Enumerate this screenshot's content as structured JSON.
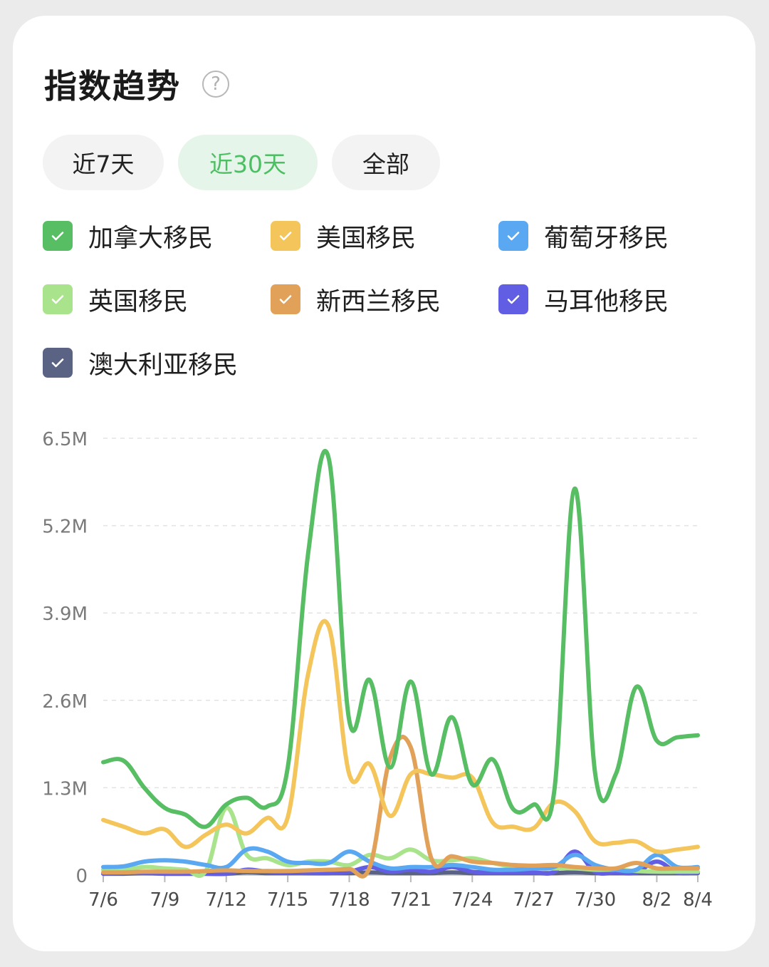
{
  "header": {
    "title": "指数趋势",
    "help_icon": "?"
  },
  "tabs": [
    {
      "label": "近7天",
      "active": false
    },
    {
      "label": "近30天",
      "active": true
    },
    {
      "label": "全部",
      "active": false
    }
  ],
  "legend": [
    {
      "label": "加拿大移民",
      "color": "#57be64"
    },
    {
      "label": "美国移民",
      "color": "#f4c55a"
    },
    {
      "label": "葡萄牙移民",
      "color": "#5aa8f2"
    },
    {
      "label": "英国移民",
      "color": "#a9e38b"
    },
    {
      "label": "新西兰移民",
      "color": "#e2a159"
    },
    {
      "label": "马耳他移民",
      "color": "#625ee4"
    },
    {
      "label": "澳大利亚移民",
      "color": "#5b6384"
    }
  ],
  "chart_data": {
    "type": "line",
    "x_ticks": [
      "7/6",
      "7/9",
      "7/12",
      "7/15",
      "7/18",
      "7/21",
      "7/24",
      "7/27",
      "7/30",
      "8/2",
      "8/4"
    ],
    "y_ticks": [
      "0",
      "1.3M",
      "2.6M",
      "3.9M",
      "5.2M",
      "6.5M"
    ],
    "ylim": [
      0,
      6.5
    ],
    "y_unit": "M",
    "grid": "horizontal-dashed",
    "series": [
      {
        "name": "加拿大移民",
        "color": "#57be64",
        "points": [
          [
            0,
            1.68
          ],
          [
            1,
            1.7
          ],
          [
            2,
            1.3
          ],
          [
            3,
            1.0
          ],
          [
            4,
            0.9
          ],
          [
            5,
            0.72
          ],
          [
            6,
            1.05
          ],
          [
            7,
            1.15
          ],
          [
            8,
            1.02
          ],
          [
            9,
            1.6
          ],
          [
            10,
            4.8
          ],
          [
            11,
            6.2
          ],
          [
            12,
            2.3
          ],
          [
            13,
            2.9
          ],
          [
            14,
            1.6
          ],
          [
            15,
            2.88
          ],
          [
            16,
            1.5
          ],
          [
            17,
            2.35
          ],
          [
            18,
            1.35
          ],
          [
            19,
            1.72
          ],
          [
            20,
            0.98
          ],
          [
            21,
            1.05
          ],
          [
            22,
            1.25
          ],
          [
            23,
            5.75
          ],
          [
            24,
            1.5
          ],
          [
            25,
            1.5
          ],
          [
            26,
            2.8
          ],
          [
            27,
            2.0
          ],
          [
            28,
            2.05
          ],
          [
            29,
            2.08
          ]
        ]
      },
      {
        "name": "美国移民",
        "color": "#f4c55a",
        "points": [
          [
            0,
            0.82
          ],
          [
            1,
            0.72
          ],
          [
            2,
            0.62
          ],
          [
            3,
            0.68
          ],
          [
            4,
            0.42
          ],
          [
            5,
            0.6
          ],
          [
            6,
            0.75
          ],
          [
            7,
            0.62
          ],
          [
            8,
            0.85
          ],
          [
            9,
            0.86
          ],
          [
            10,
            3.0
          ],
          [
            11,
            3.7
          ],
          [
            12,
            1.5
          ],
          [
            13,
            1.65
          ],
          [
            14,
            0.88
          ],
          [
            15,
            1.5
          ],
          [
            16,
            1.5
          ],
          [
            17,
            1.45
          ],
          [
            18,
            1.45
          ],
          [
            19,
            0.78
          ],
          [
            20,
            0.72
          ],
          [
            21,
            0.7
          ],
          [
            22,
            1.08
          ],
          [
            23,
            0.95
          ],
          [
            24,
            0.5
          ],
          [
            25,
            0.48
          ],
          [
            26,
            0.5
          ],
          [
            27,
            0.35
          ],
          [
            28,
            0.38
          ],
          [
            29,
            0.42
          ]
        ]
      },
      {
        "name": "新西兰移民",
        "color": "#e2a159",
        "points": [
          [
            0,
            0.04
          ],
          [
            1,
            0.04
          ],
          [
            2,
            0.05
          ],
          [
            3,
            0.05
          ],
          [
            4,
            0.05
          ],
          [
            5,
            0.06
          ],
          [
            6,
            0.07
          ],
          [
            7,
            0.06
          ],
          [
            8,
            0.06
          ],
          [
            9,
            0.06
          ],
          [
            10,
            0.07
          ],
          [
            11,
            0.08
          ],
          [
            12,
            0.09
          ],
          [
            13,
            0.12
          ],
          [
            14,
            1.75
          ],
          [
            15,
            1.9
          ],
          [
            16,
            0.25
          ],
          [
            17,
            0.28
          ],
          [
            18,
            0.2
          ],
          [
            19,
            0.18
          ],
          [
            20,
            0.15
          ],
          [
            21,
            0.14
          ],
          [
            22,
            0.15
          ],
          [
            23,
            0.12
          ],
          [
            24,
            0.1
          ],
          [
            25,
            0.1
          ],
          [
            26,
            0.18
          ],
          [
            27,
            0.1
          ],
          [
            28,
            0.1
          ],
          [
            29,
            0.1
          ]
        ]
      },
      {
        "name": "英国移民",
        "color": "#a9e38b",
        "points": [
          [
            0,
            0.08
          ],
          [
            1,
            0.08
          ],
          [
            2,
            0.12
          ],
          [
            3,
            0.1
          ],
          [
            4,
            0.08
          ],
          [
            5,
            0.06
          ],
          [
            6,
            1.0
          ],
          [
            7,
            0.3
          ],
          [
            8,
            0.25
          ],
          [
            9,
            0.15
          ],
          [
            10,
            0.2
          ],
          [
            11,
            0.2
          ],
          [
            12,
            0.15
          ],
          [
            13,
            0.3
          ],
          [
            14,
            0.25
          ],
          [
            15,
            0.38
          ],
          [
            16,
            0.22
          ],
          [
            17,
            0.22
          ],
          [
            18,
            0.25
          ],
          [
            19,
            0.18
          ],
          [
            20,
            0.12
          ],
          [
            21,
            0.1
          ],
          [
            22,
            0.1
          ],
          [
            23,
            0.1
          ],
          [
            24,
            0.08
          ],
          [
            25,
            0.08
          ],
          [
            26,
            0.06
          ],
          [
            27,
            0.05
          ],
          [
            28,
            0.05
          ],
          [
            29,
            0.05
          ]
        ]
      },
      {
        "name": "葡萄牙移民",
        "color": "#5aa8f2",
        "points": [
          [
            0,
            0.12
          ],
          [
            1,
            0.13
          ],
          [
            2,
            0.2
          ],
          [
            3,
            0.22
          ],
          [
            4,
            0.2
          ],
          [
            5,
            0.15
          ],
          [
            6,
            0.12
          ],
          [
            7,
            0.38
          ],
          [
            8,
            0.35
          ],
          [
            9,
            0.2
          ],
          [
            10,
            0.18
          ],
          [
            11,
            0.18
          ],
          [
            12,
            0.35
          ],
          [
            13,
            0.2
          ],
          [
            14,
            0.1
          ],
          [
            15,
            0.12
          ],
          [
            16,
            0.12
          ],
          [
            17,
            0.15
          ],
          [
            18,
            0.12
          ],
          [
            19,
            0.08
          ],
          [
            20,
            0.08
          ],
          [
            21,
            0.1
          ],
          [
            22,
            0.12
          ],
          [
            23,
            0.3
          ],
          [
            24,
            0.15
          ],
          [
            25,
            0.08
          ],
          [
            26,
            0.08
          ],
          [
            27,
            0.3
          ],
          [
            28,
            0.12
          ],
          [
            29,
            0.12
          ]
        ]
      },
      {
        "name": "马耳他移民",
        "color": "#625ee4",
        "points": [
          [
            0,
            0.02
          ],
          [
            1,
            0.03
          ],
          [
            2,
            0.03
          ],
          [
            3,
            0.02
          ],
          [
            4,
            0.02
          ],
          [
            5,
            0.02
          ],
          [
            6,
            0.02
          ],
          [
            7,
            0.08
          ],
          [
            8,
            0.05
          ],
          [
            9,
            0.04
          ],
          [
            10,
            0.03
          ],
          [
            11,
            0.03
          ],
          [
            12,
            0.05
          ],
          [
            13,
            0.12
          ],
          [
            14,
            0.05
          ],
          [
            15,
            0.08
          ],
          [
            16,
            0.05
          ],
          [
            17,
            0.12
          ],
          [
            18,
            0.05
          ],
          [
            19,
            0.04
          ],
          [
            20,
            0.04
          ],
          [
            21,
            0.04
          ],
          [
            22,
            0.05
          ],
          [
            23,
            0.35
          ],
          [
            24,
            0.05
          ],
          [
            25,
            0.04
          ],
          [
            26,
            0.04
          ],
          [
            27,
            0.2
          ],
          [
            28,
            0.04
          ],
          [
            29,
            0.04
          ]
        ]
      },
      {
        "name": "澳大利亚移民",
        "color": "#5b6384",
        "points": [
          [
            0,
            0.02
          ],
          [
            1,
            0.02
          ],
          [
            2,
            0.03
          ],
          [
            3,
            0.02
          ],
          [
            4,
            0.02
          ],
          [
            5,
            0.02
          ],
          [
            6,
            0.02
          ],
          [
            7,
            0.04
          ],
          [
            8,
            0.03
          ],
          [
            9,
            0.03
          ],
          [
            10,
            0.03
          ],
          [
            11,
            0.03
          ],
          [
            12,
            0.03
          ],
          [
            13,
            0.04
          ],
          [
            14,
            0.03
          ],
          [
            15,
            0.03
          ],
          [
            16,
            0.03
          ],
          [
            17,
            0.04
          ],
          [
            18,
            0.03
          ],
          [
            19,
            0.03
          ],
          [
            20,
            0.03
          ],
          [
            21,
            0.03
          ],
          [
            22,
            0.03
          ],
          [
            23,
            0.04
          ],
          [
            24,
            0.03
          ],
          [
            25,
            0.03
          ],
          [
            26,
            0.03
          ],
          [
            27,
            0.03
          ],
          [
            28,
            0.03
          ],
          [
            29,
            0.03
          ]
        ]
      }
    ]
  }
}
